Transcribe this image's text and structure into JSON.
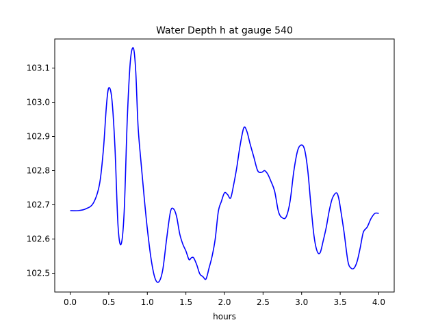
{
  "chart_data": {
    "type": "line",
    "title": "Water Depth h at gauge 540",
    "xlabel": "hours",
    "ylabel": "",
    "xlim": [
      -0.2,
      4.2
    ],
    "ylim": [
      102.445,
      103.185
    ],
    "xticks": [
      0.0,
      0.5,
      1.0,
      1.5,
      2.0,
      2.5,
      3.0,
      3.5,
      4.0
    ],
    "xtick_labels": [
      "0.0",
      "0.5",
      "1.0",
      "1.5",
      "2.0",
      "2.5",
      "3.0",
      "3.5",
      "4.0"
    ],
    "yticks": [
      102.5,
      102.6,
      102.7,
      102.8,
      102.9,
      103.0,
      103.1
    ],
    "ytick_labels": [
      "102.5",
      "102.6",
      "102.7",
      "102.8",
      "102.9",
      "103.0",
      "103.1"
    ],
    "grid": false,
    "series": [
      {
        "color": "#0000ff",
        "x": [
          0.0,
          0.1,
          0.2,
          0.3,
          0.38,
          0.43,
          0.47,
          0.5,
          0.54,
          0.58,
          0.62,
          0.66,
          0.7,
          0.74,
          0.78,
          0.82,
          0.85,
          0.88,
          0.92,
          0.96,
          1.0,
          1.05,
          1.1,
          1.15,
          1.2,
          1.25,
          1.3,
          1.34,
          1.38,
          1.42,
          1.46,
          1.5,
          1.54,
          1.57,
          1.6,
          1.64,
          1.68,
          1.72,
          1.76,
          1.8,
          1.84,
          1.88,
          1.92,
          1.96,
          2.0,
          2.04,
          2.08,
          2.12,
          2.16,
          2.2,
          2.25,
          2.29,
          2.33,
          2.38,
          2.43,
          2.48,
          2.52,
          2.56,
          2.6,
          2.65,
          2.7,
          2.75,
          2.8,
          2.85,
          2.9,
          2.95,
          3.0,
          3.04,
          3.08,
          3.12,
          3.16,
          3.2,
          3.24,
          3.28,
          3.32,
          3.36,
          3.4,
          3.45,
          3.48,
          3.51,
          3.55,
          3.6,
          3.64,
          3.68,
          3.72,
          3.76,
          3.8,
          3.85,
          3.9,
          3.95,
          4.0
        ],
        "y": [
          102.683,
          102.683,
          102.688,
          102.705,
          102.76,
          102.86,
          102.99,
          103.042,
          103.01,
          102.87,
          102.64,
          102.585,
          102.68,
          102.95,
          103.12,
          103.158,
          103.09,
          102.93,
          102.82,
          102.72,
          102.63,
          102.54,
          102.485,
          102.475,
          102.51,
          102.6,
          102.68,
          102.688,
          102.665,
          102.615,
          102.585,
          102.565,
          102.54,
          102.545,
          102.545,
          102.525,
          102.498,
          102.49,
          102.483,
          102.515,
          102.55,
          102.6,
          102.68,
          102.71,
          102.735,
          102.73,
          102.72,
          102.76,
          102.81,
          102.87,
          102.925,
          102.915,
          102.88,
          102.84,
          102.8,
          102.795,
          102.8,
          102.79,
          102.77,
          102.74,
          102.68,
          102.662,
          102.665,
          102.71,
          102.8,
          102.86,
          102.875,
          102.86,
          102.8,
          102.7,
          102.61,
          102.565,
          102.56,
          102.595,
          102.635,
          102.685,
          102.72,
          102.735,
          102.72,
          102.68,
          102.62,
          102.535,
          102.515,
          102.515,
          102.535,
          102.575,
          102.62,
          102.635,
          102.66,
          102.675,
          102.675
        ]
      }
    ]
  }
}
